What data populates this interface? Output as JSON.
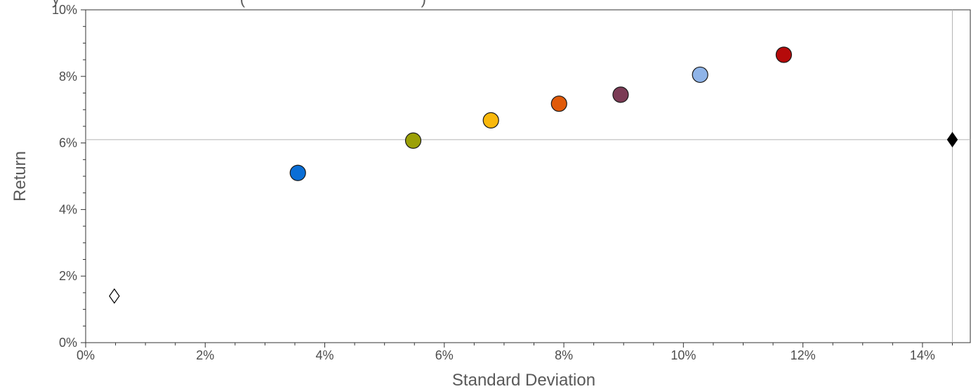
{
  "chart_data": {
    "type": "scatter",
    "title": "y                                          (                                         )",
    "xlabel": "Standard Deviation",
    "ylabel": "Return",
    "xlim": [
      0,
      14.8
    ],
    "ylim": [
      0,
      10
    ],
    "x_ticks": [
      "0%",
      "2%",
      "4%",
      "6%",
      "8%",
      "10%",
      "12%",
      "14%"
    ],
    "y_ticks": [
      "0%",
      "2%",
      "4%",
      "6%",
      "8%",
      "10%"
    ],
    "reference_lines": {
      "x": 14.5,
      "y": 6.1
    },
    "grid": false,
    "legend": "none",
    "points": [
      {
        "x": 0.48,
        "y": 1.4,
        "marker": "diamond",
        "color": "#ffffff"
      },
      {
        "x": 3.55,
        "y": 5.1,
        "marker": "circle",
        "color": "#0a6ed6"
      },
      {
        "x": 5.48,
        "y": 6.07,
        "marker": "circle",
        "color": "#9ba007"
      },
      {
        "x": 6.78,
        "y": 6.68,
        "marker": "circle",
        "color": "#f9b80c"
      },
      {
        "x": 7.92,
        "y": 7.18,
        "marker": "circle",
        "color": "#e05a0a"
      },
      {
        "x": 8.95,
        "y": 7.45,
        "marker": "circle",
        "color": "#7b3b55"
      },
      {
        "x": 10.28,
        "y": 8.05,
        "marker": "circle",
        "color": "#8fb4e8"
      },
      {
        "x": 11.68,
        "y": 8.65,
        "marker": "circle",
        "color": "#b50a0a"
      },
      {
        "x": 14.5,
        "y": 6.1,
        "marker": "diamond",
        "color": "#000000"
      }
    ]
  }
}
